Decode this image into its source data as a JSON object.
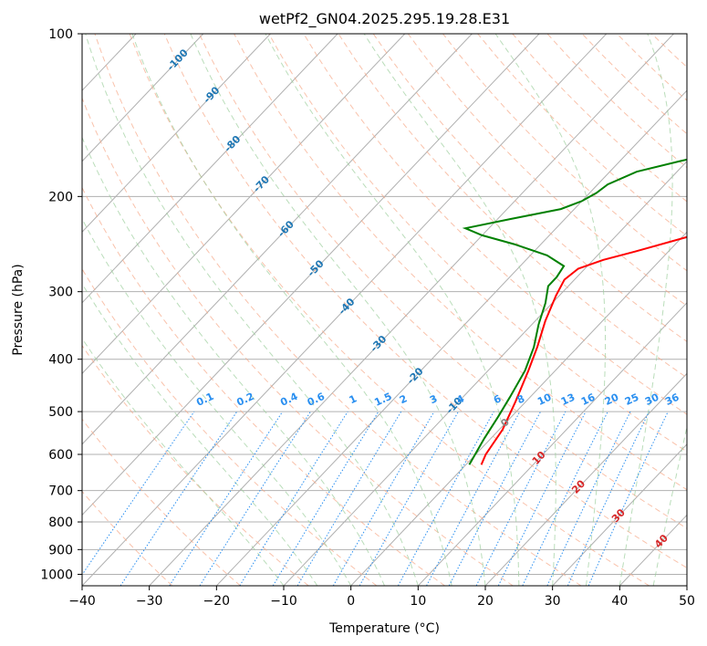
{
  "chart_data": {
    "type": "line",
    "title": "wetPf2_GN04.2025.295.19.28.E31",
    "xlabel": "Temperature (°C)",
    "ylabel": "Pressure (hPa)",
    "xlim": [
      -40,
      50
    ],
    "ylim": [
      1050,
      100
    ],
    "x_ticks": [
      "−40",
      "−30",
      "−20",
      "−10",
      "0",
      "10",
      "20",
      "30",
      "40",
      "50"
    ],
    "y_ticks": [
      {
        "p": 100,
        "label": "100"
      },
      {
        "p": 200,
        "label": "200"
      },
      {
        "p": 300,
        "label": "300"
      },
      {
        "p": 400,
        "label": "400"
      },
      {
        "p": 500,
        "label": "500"
      },
      {
        "p": 600,
        "label": "600"
      },
      {
        "p": 700,
        "label": "700"
      },
      {
        "p": 800,
        "label": "800"
      },
      {
        "p": 900,
        "label": "900"
      },
      {
        "p": 1000,
        "label": "1000"
      }
    ],
    "series": [
      {
        "name": "Temperature",
        "color": "#ff0000",
        "points": [
          [
            2.3,
            627
          ],
          [
            1.5,
            600
          ],
          [
            0.5,
            540
          ],
          [
            -1.5,
            480
          ],
          [
            -4,
            420
          ],
          [
            -6,
            380
          ],
          [
            -8.5,
            340
          ],
          [
            -10.5,
            305
          ],
          [
            -11.5,
            285
          ],
          [
            -11,
            272
          ],
          [
            -8.5,
            262
          ],
          [
            -5,
            253
          ],
          [
            1,
            237
          ],
          [
            5,
            220
          ],
          [
            7.5,
            200
          ],
          [
            10.5,
            184
          ],
          [
            12.5,
            172
          ],
          [
            14,
            163
          ],
          [
            15.5,
            152
          ],
          [
            18.5,
            140
          ],
          [
            21.5,
            129
          ],
          [
            24.5,
            119
          ],
          [
            27,
            113
          ],
          [
            29,
            109
          ],
          [
            30,
            106
          ],
          [
            31,
            102
          ],
          [
            31.7,
            100
          ]
        ]
      },
      {
        "name": "Dewpoint",
        "color": "#008000",
        "points": [
          [
            0.5,
            627
          ],
          [
            -1,
            560
          ],
          [
            -2,
            510
          ],
          [
            -3,
            470
          ],
          [
            -4.5,
            420
          ],
          [
            -6.5,
            380
          ],
          [
            -9,
            345
          ],
          [
            -11,
            315
          ],
          [
            -13,
            293
          ],
          [
            -13,
            282
          ],
          [
            -13.5,
            269
          ],
          [
            -17.5,
            257
          ],
          [
            -24,
            245
          ],
          [
            -30,
            236
          ],
          [
            -33.5,
            229
          ],
          [
            -28,
            220
          ],
          [
            -22,
            211
          ],
          [
            -20,
            204
          ],
          [
            -19,
            197
          ],
          [
            -18.5,
            190
          ],
          [
            -16,
            180
          ],
          [
            -11,
            172
          ],
          [
            -6,
            165
          ],
          [
            -5,
            157
          ],
          [
            -4.5,
            149
          ],
          [
            -4.5,
            140
          ],
          [
            -4.5,
            131
          ],
          [
            -4,
            123
          ],
          [
            -4.5,
            115
          ],
          [
            -4.5,
            111
          ],
          [
            -3,
            108
          ],
          [
            -1,
            104
          ],
          [
            1,
            100
          ]
        ]
      }
    ],
    "isotherm_labels": [
      {
        "value": "-100",
        "p": 112
      },
      {
        "value": "-90",
        "p": 130
      },
      {
        "value": "-80",
        "p": 160
      },
      {
        "value": "-70",
        "p": 190
      },
      {
        "value": "-60",
        "p": 230
      },
      {
        "value": "-50",
        "p": 272
      },
      {
        "value": "-40",
        "p": 320
      },
      {
        "value": "-30",
        "p": 375
      },
      {
        "value": "-20",
        "p": 430
      },
      {
        "value": "-10",
        "p": 488
      },
      {
        "value": "0",
        "p": 525
      },
      {
        "value": "10",
        "p": 610
      },
      {
        "value": "20",
        "p": 690
      },
      {
        "value": "30",
        "p": 780
      },
      {
        "value": "40",
        "p": 870
      }
    ],
    "mixing_ratio_labels": [
      "0.1",
      "0.2",
      "0.4",
      "0.6",
      "1",
      "1.5",
      "2",
      "3",
      "4",
      "6",
      "8",
      "10",
      "13",
      "16",
      "20",
      "25",
      "30",
      "36"
    ],
    "mixing_ratio_label_x": [
      -21.5,
      -15.5,
      -9,
      -5,
      0.5,
      5,
      8,
      12.5,
      16.5,
      22,
      25.5,
      29,
      32.5,
      35.5,
      39,
      42,
      45,
      48
    ]
  }
}
